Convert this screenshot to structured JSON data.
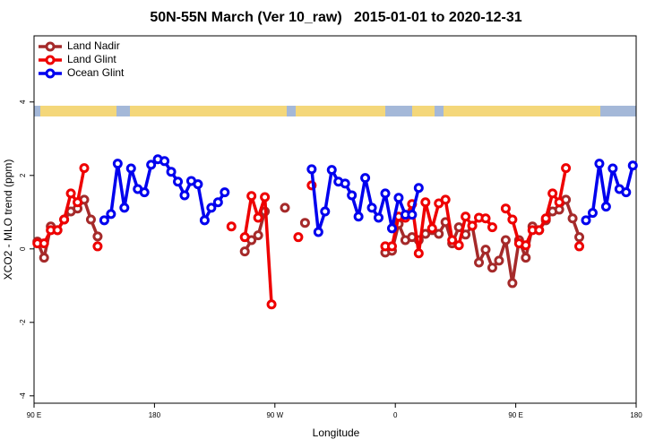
{
  "chart_data": {
    "type": "line",
    "title": "50N-55N March (Ver 10_raw)   2015-01-01 to 2020-12-31",
    "x_label": "Longitude",
    "y_label": "XCO2 - MLO trend (ppm)",
    "xlim": [
      90,
      540
    ],
    "xticks": [
      {
        "value": 90,
        "label": "90 E"
      },
      180,
      {
        "value": 270,
        "label": "90 W"
      },
      {
        "value": 360,
        "label": "0"
      },
      {
        "value": 450,
        "label": "90 E"
      },
      {
        "value": 540,
        "label": "180"
      }
    ],
    "ylim": [
      -4.2,
      5.8
    ],
    "yticks": [
      -4,
      -2,
      0,
      2,
      4
    ],
    "legend": "top-left",
    "series": [
      {
        "name": "Land Nadir",
        "color": "#a52a2a",
        "x": [
          92.5,
          97.5,
          102.5,
          107.5,
          112.5,
          117.5,
          122.5,
          127.5,
          132.5,
          137.5,
          142.5,
          247.5,
          252.5,
          257.5,
          262.5,
          267.5,
          277.5,
          282.5,
          292.5,
          297.5,
          352.5,
          357.5,
          362.5,
          367.5,
          372.5,
          377.5,
          382.5,
          387.5,
          392.5,
          397.5,
          402.5,
          407.5,
          412.5,
          417.5,
          422.5,
          427.5,
          432.5,
          437.5,
          442.5,
          447.5,
          452.5,
          457.5,
          462.5,
          467.5,
          472.5,
          477.5,
          482.5,
          487.5,
          492.5,
          497.5
        ],
        "values": [
          0.2,
          -0.24,
          0.61,
          0.51,
          0.8,
          1.02,
          1.1,
          1.34,
          0.8,
          0.34,
          null,
          -0.07,
          0.24,
          0.37,
          1.02,
          null,
          1.12,
          null,
          0.71,
          null,
          -0.1,
          -0.05,
          0.68,
          0.24,
          0.32,
          0.24,
          0.41,
          0.51,
          0.41,
          0.73,
          0.15,
          0.59,
          0.39,
          0.63,
          -0.37,
          -0.02,
          -0.51,
          -0.32,
          0.24,
          -0.93,
          0.24,
          -0.24,
          0.61,
          0.51,
          0.78,
          1.02,
          1.07,
          1.34,
          0.83,
          0.32
        ]
      },
      {
        "name": "Land Glint",
        "color": "#ee0000",
        "x": [
          92.5,
          97.5,
          102.5,
          107.5,
          112.5,
          117.5,
          122.5,
          127.5,
          132.5,
          137.5,
          142.5,
          237.5,
          242.5,
          247.5,
          252.5,
          257.5,
          262.5,
          267.5,
          272.5,
          287.5,
          292.5,
          297.5,
          302.5,
          352.5,
          357.5,
          362.5,
          367.5,
          372.5,
          377.5,
          382.5,
          387.5,
          392.5,
          397.5,
          402.5,
          407.5,
          412.5,
          417.5,
          422.5,
          427.5,
          432.5,
          437.5,
          442.5,
          447.5,
          452.5,
          457.5,
          462.5,
          467.5,
          472.5,
          477.5,
          482.5,
          487.5,
          492.5,
          497.5
        ],
        "values": [
          0.15,
          0.15,
          0.51,
          0.51,
          0.8,
          1.51,
          1.27,
          2.2,
          null,
          0.07,
          null,
          0.61,
          null,
          0.32,
          1.44,
          0.85,
          1.41,
          -1.51,
          null,
          0.32,
          null,
          1.73,
          null,
          0.07,
          0.07,
          0.88,
          0.85,
          1.22,
          -0.12,
          1.27,
          0.56,
          1.24,
          1.34,
          0.24,
          0.1,
          0.88,
          0.63,
          0.85,
          0.83,
          0.59,
          null,
          1.1,
          0.8,
          0.15,
          0.1,
          0.51,
          0.51,
          0.83,
          1.51,
          1.27,
          2.2,
          null,
          0.07
        ]
      },
      {
        "name": "Ocean Glint",
        "color": "#0000ee",
        "x": [
          142.5,
          147.5,
          152.5,
          157.5,
          162.5,
          167.5,
          172.5,
          177.5,
          182.5,
          187.5,
          192.5,
          197.5,
          202.5,
          207.5,
          212.5,
          217.5,
          222.5,
          227.5,
          232.5,
          237.5,
          297.5,
          302.5,
          307.5,
          312.5,
          317.5,
          322.5,
          327.5,
          332.5,
          337.5,
          342.5,
          347.5,
          352.5,
          357.5,
          362.5,
          367.5,
          372.5,
          377.5,
          382.5,
          502.5,
          507.5,
          512.5,
          517.5,
          522.5,
          527.5,
          532.5,
          537.5
        ],
        "values": [
          0.78,
          0.95,
          2.32,
          1.12,
          2.19,
          1.63,
          1.54,
          2.29,
          2.44,
          2.39,
          2.1,
          1.83,
          1.46,
          1.85,
          1.76,
          0.78,
          1.12,
          1.27,
          1.54,
          null,
          2.17,
          0.46,
          1.02,
          2.15,
          1.83,
          1.78,
          1.46,
          0.88,
          1.93,
          1.12,
          0.85,
          1.51,
          0.56,
          1.39,
          0.93,
          0.93,
          1.66,
          null,
          0.78,
          0.98,
          2.32,
          1.15,
          2.19,
          1.63,
          1.54,
          2.27
        ]
      }
    ]
  }
}
